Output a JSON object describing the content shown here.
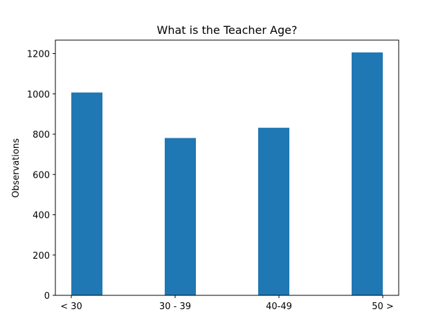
{
  "chart_data": {
    "type": "bar",
    "title": "What is the Teacher Age?",
    "xlabel": "",
    "ylabel": "Observations",
    "categories": [
      "< 30",
      "30 - 39",
      "40-49",
      "50 >"
    ],
    "values": [
      1007,
      781,
      832,
      1206
    ],
    "yticks": [
      0,
      200,
      400,
      600,
      800,
      1000,
      1200
    ],
    "ylim": [
      0,
      1267
    ],
    "grid": false,
    "legend": "none",
    "bar_color": "#1f77b4"
  }
}
